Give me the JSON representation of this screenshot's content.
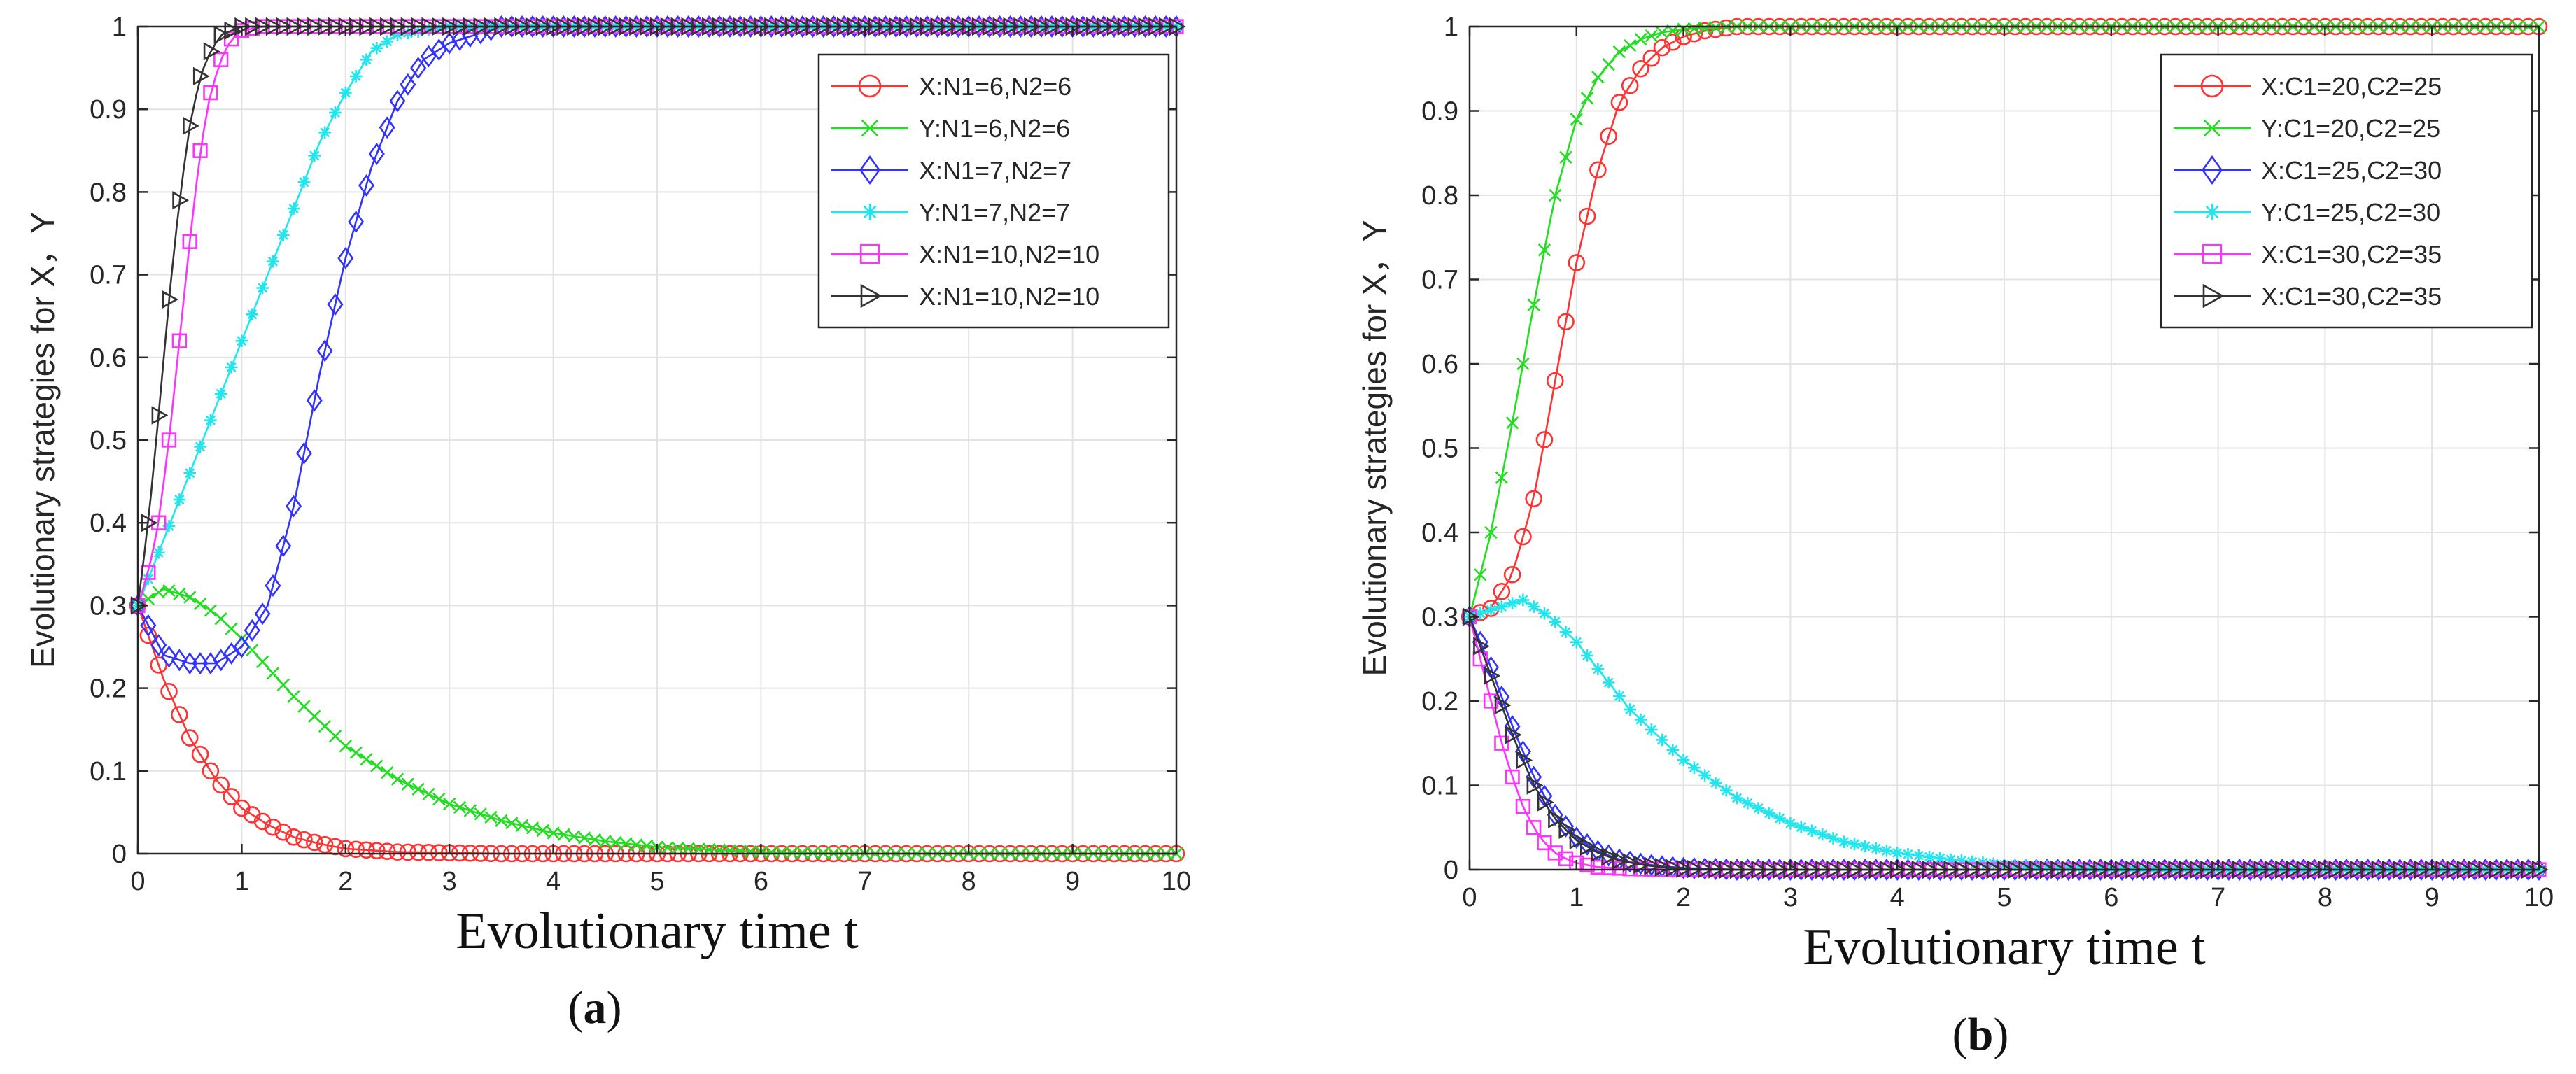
{
  "chart_data": [
    {
      "type": "line",
      "panel_label": "(a)",
      "panel_label_parts": {
        "open": "(",
        "letter": "a",
        "close": ")"
      },
      "xlabel": "Evolutionary time t",
      "ylabel": "Evolutionary strategies for X，Y",
      "xlim": [
        0,
        10
      ],
      "ylim": [
        0,
        1
      ],
      "xticks": [
        "0",
        "1",
        "2",
        "3",
        "4",
        "5",
        "6",
        "7",
        "8",
        "9",
        "10"
      ],
      "yticks": [
        "0",
        "0.1",
        "0.2",
        "0.3",
        "0.4",
        "0.5",
        "0.6",
        "0.7",
        "0.8",
        "0.9",
        "1"
      ],
      "grid": true,
      "legend_position": "top-right",
      "series": [
        {
          "name": "X:N1=6,N2=6",
          "color": "#ff3333",
          "marker": "circle",
          "x": [
            0,
            0.25,
            0.5,
            0.75,
            1,
            1.25,
            1.5,
            1.75,
            2,
            2.5,
            3,
            3.5,
            4,
            5,
            6,
            7,
            8,
            9,
            10
          ],
          "y": [
            0.3,
            0.21,
            0.14,
            0.09,
            0.055,
            0.035,
            0.02,
            0.012,
            0.006,
            0.002,
            0.001,
            0,
            0,
            0,
            0,
            0,
            0,
            0,
            0
          ]
        },
        {
          "name": "Y:N1=6,N2=6",
          "color": "#22dd22",
          "marker": "x",
          "x": [
            0,
            0.25,
            0.5,
            0.75,
            1,
            1.5,
            2,
            2.5,
            3,
            3.5,
            4,
            4.5,
            5,
            6,
            7,
            8,
            9,
            10
          ],
          "y": [
            0.3,
            0.32,
            0.31,
            0.29,
            0.26,
            0.19,
            0.13,
            0.09,
            0.06,
            0.04,
            0.025,
            0.015,
            0.008,
            0.002,
            0,
            0,
            0,
            0
          ]
        },
        {
          "name": "X:N1=7,N2=7",
          "color": "#3333ff",
          "marker": "diamond",
          "x": [
            0,
            0.25,
            0.5,
            0.75,
            1,
            1.25,
            1.5,
            1.75,
            2,
            2.25,
            2.5,
            2.75,
            3,
            3.5,
            4,
            5,
            6,
            7,
            8,
            9,
            10
          ],
          "y": [
            0.3,
            0.24,
            0.23,
            0.23,
            0.25,
            0.3,
            0.42,
            0.58,
            0.72,
            0.83,
            0.91,
            0.96,
            0.98,
            1,
            1,
            1,
            1,
            1,
            1,
            1,
            1
          ]
        },
        {
          "name": "Y:N1=7,N2=7",
          "color": "#22e5ee",
          "marker": "asterisk",
          "x": [
            0,
            0.25,
            0.5,
            0.75,
            1,
            1.25,
            1.5,
            1.75,
            2,
            2.25,
            2.5,
            3,
            3.5,
            4,
            5,
            6,
            7,
            8,
            9,
            10
          ],
          "y": [
            0.3,
            0.38,
            0.46,
            0.54,
            0.62,
            0.7,
            0.78,
            0.86,
            0.92,
            0.97,
            0.99,
            1,
            1,
            1,
            1,
            1,
            1,
            1,
            1,
            1
          ]
        },
        {
          "name": "X:N1=10,N2=10",
          "color": "#ff33ff",
          "marker": "square",
          "x": [
            0,
            0.1,
            0.2,
            0.3,
            0.4,
            0.5,
            0.6,
            0.7,
            0.8,
            0.9,
            1,
            1.2,
            1.5,
            2,
            3,
            4,
            5,
            6,
            7,
            8,
            9,
            10
          ],
          "y": [
            0.3,
            0.34,
            0.4,
            0.5,
            0.62,
            0.74,
            0.85,
            0.92,
            0.96,
            0.985,
            0.995,
            1,
            1,
            1,
            1,
            1,
            1,
            1,
            1,
            1,
            1,
            1
          ]
        },
        {
          "name": "X:N1=10,N2=10",
          "color": "#333333",
          "marker": "triangle-right",
          "x": [
            0,
            0.1,
            0.2,
            0.3,
            0.4,
            0.5,
            0.6,
            0.7,
            0.8,
            0.9,
            1,
            1.2,
            1.5,
            2,
            3,
            4,
            5,
            6,
            7,
            8,
            9,
            10
          ],
          "y": [
            0.3,
            0.4,
            0.53,
            0.67,
            0.79,
            0.88,
            0.94,
            0.97,
            0.99,
            0.995,
            1,
            1,
            1,
            1,
            1,
            1,
            1,
            1,
            1,
            1,
            1,
            1
          ]
        }
      ]
    },
    {
      "type": "line",
      "panel_label": "(b)",
      "panel_label_parts": {
        "open": "(",
        "letter": "b",
        "close": ")"
      },
      "xlabel": "Evolutionary time t",
      "ylabel": "Evolutionary strategies for X，Y",
      "xlim": [
        0,
        10
      ],
      "ylim": [
        0,
        1
      ],
      "xticks": [
        "0",
        "1",
        "2",
        "3",
        "4",
        "5",
        "6",
        "7",
        "8",
        "9",
        "10"
      ],
      "yticks": [
        "0",
        "0.1",
        "0.2",
        "0.3",
        "0.4",
        "0.5",
        "0.6",
        "0.7",
        "0.8",
        "0.9",
        "1"
      ],
      "grid": true,
      "legend_position": "top-right",
      "series": [
        {
          "name": "X:C1=20,C2=25",
          "color": "#ff3333",
          "marker": "circle",
          "x": [
            0,
            0.2,
            0.4,
            0.6,
            0.8,
            1,
            1.2,
            1.4,
            1.6,
            1.8,
            2,
            2.2,
            2.5,
            3,
            3.5,
            4,
            5,
            6,
            7,
            8,
            9,
            10
          ],
          "y": [
            0.3,
            0.31,
            0.35,
            0.44,
            0.58,
            0.72,
            0.83,
            0.91,
            0.95,
            0.975,
            0.988,
            0.995,
            1,
            1,
            1,
            1,
            1,
            1,
            1,
            1,
            1,
            1
          ]
        },
        {
          "name": "Y:C1=20,C2=25",
          "color": "#22dd22",
          "marker": "x",
          "x": [
            0,
            0.2,
            0.4,
            0.6,
            0.8,
            1,
            1.2,
            1.4,
            1.6,
            1.8,
            2,
            2.5,
            3,
            4,
            5,
            6,
            7,
            8,
            9,
            10
          ],
          "y": [
            0.3,
            0.4,
            0.53,
            0.67,
            0.8,
            0.89,
            0.94,
            0.97,
            0.985,
            0.993,
            0.997,
            1,
            1,
            1,
            1,
            1,
            1,
            1,
            1,
            1
          ]
        },
        {
          "name": "X:C1=25,C2=30",
          "color": "#3333ff",
          "marker": "diamond",
          "x": [
            0,
            0.2,
            0.4,
            0.6,
            0.8,
            1,
            1.2,
            1.4,
            1.6,
            1.8,
            2,
            2.5,
            3,
            4,
            5,
            6,
            7,
            8,
            9,
            10
          ],
          "y": [
            0.3,
            0.24,
            0.17,
            0.11,
            0.065,
            0.038,
            0.022,
            0.012,
            0.007,
            0.004,
            0.002,
            0,
            0,
            0,
            0,
            0,
            0,
            0,
            0,
            0
          ]
        },
        {
          "name": "Y:C1=25,C2=30",
          "color": "#22e5ee",
          "marker": "asterisk",
          "x": [
            0,
            0.25,
            0.5,
            0.75,
            1,
            1.25,
            1.5,
            2,
            2.5,
            3,
            3.5,
            4,
            4.5,
            5,
            6,
            7,
            8,
            9,
            10
          ],
          "y": [
            0.3,
            0.31,
            0.32,
            0.3,
            0.27,
            0.23,
            0.19,
            0.13,
            0.085,
            0.055,
            0.033,
            0.02,
            0.012,
            0.006,
            0.001,
            0,
            0,
            0,
            0
          ]
        },
        {
          "name": "X:C1=30,C2=35",
          "color": "#ff33ff",
          "marker": "square",
          "x": [
            0,
            0.1,
            0.2,
            0.3,
            0.4,
            0.5,
            0.6,
            0.7,
            0.8,
            0.9,
            1,
            1.2,
            1.5,
            2,
            3,
            4,
            5,
            6,
            7,
            8,
            9,
            10
          ],
          "y": [
            0.3,
            0.25,
            0.2,
            0.15,
            0.11,
            0.075,
            0.05,
            0.032,
            0.02,
            0.013,
            0.008,
            0.003,
            0.001,
            0,
            0,
            0,
            0,
            0,
            0,
            0,
            0,
            0
          ]
        },
        {
          "name": "X:C1=30,C2=35",
          "color": "#333333",
          "marker": "triangle-right",
          "x": [
            0,
            0.2,
            0.4,
            0.6,
            0.8,
            1,
            1.2,
            1.4,
            1.6,
            1.8,
            2,
            2.5,
            3,
            4,
            5,
            6,
            7,
            8,
            9,
            10
          ],
          "y": [
            0.3,
            0.23,
            0.16,
            0.1,
            0.06,
            0.035,
            0.02,
            0.011,
            0.006,
            0.003,
            0.001,
            0,
            0,
            0,
            0,
            0,
            0,
            0,
            0,
            0
          ]
        }
      ]
    }
  ]
}
